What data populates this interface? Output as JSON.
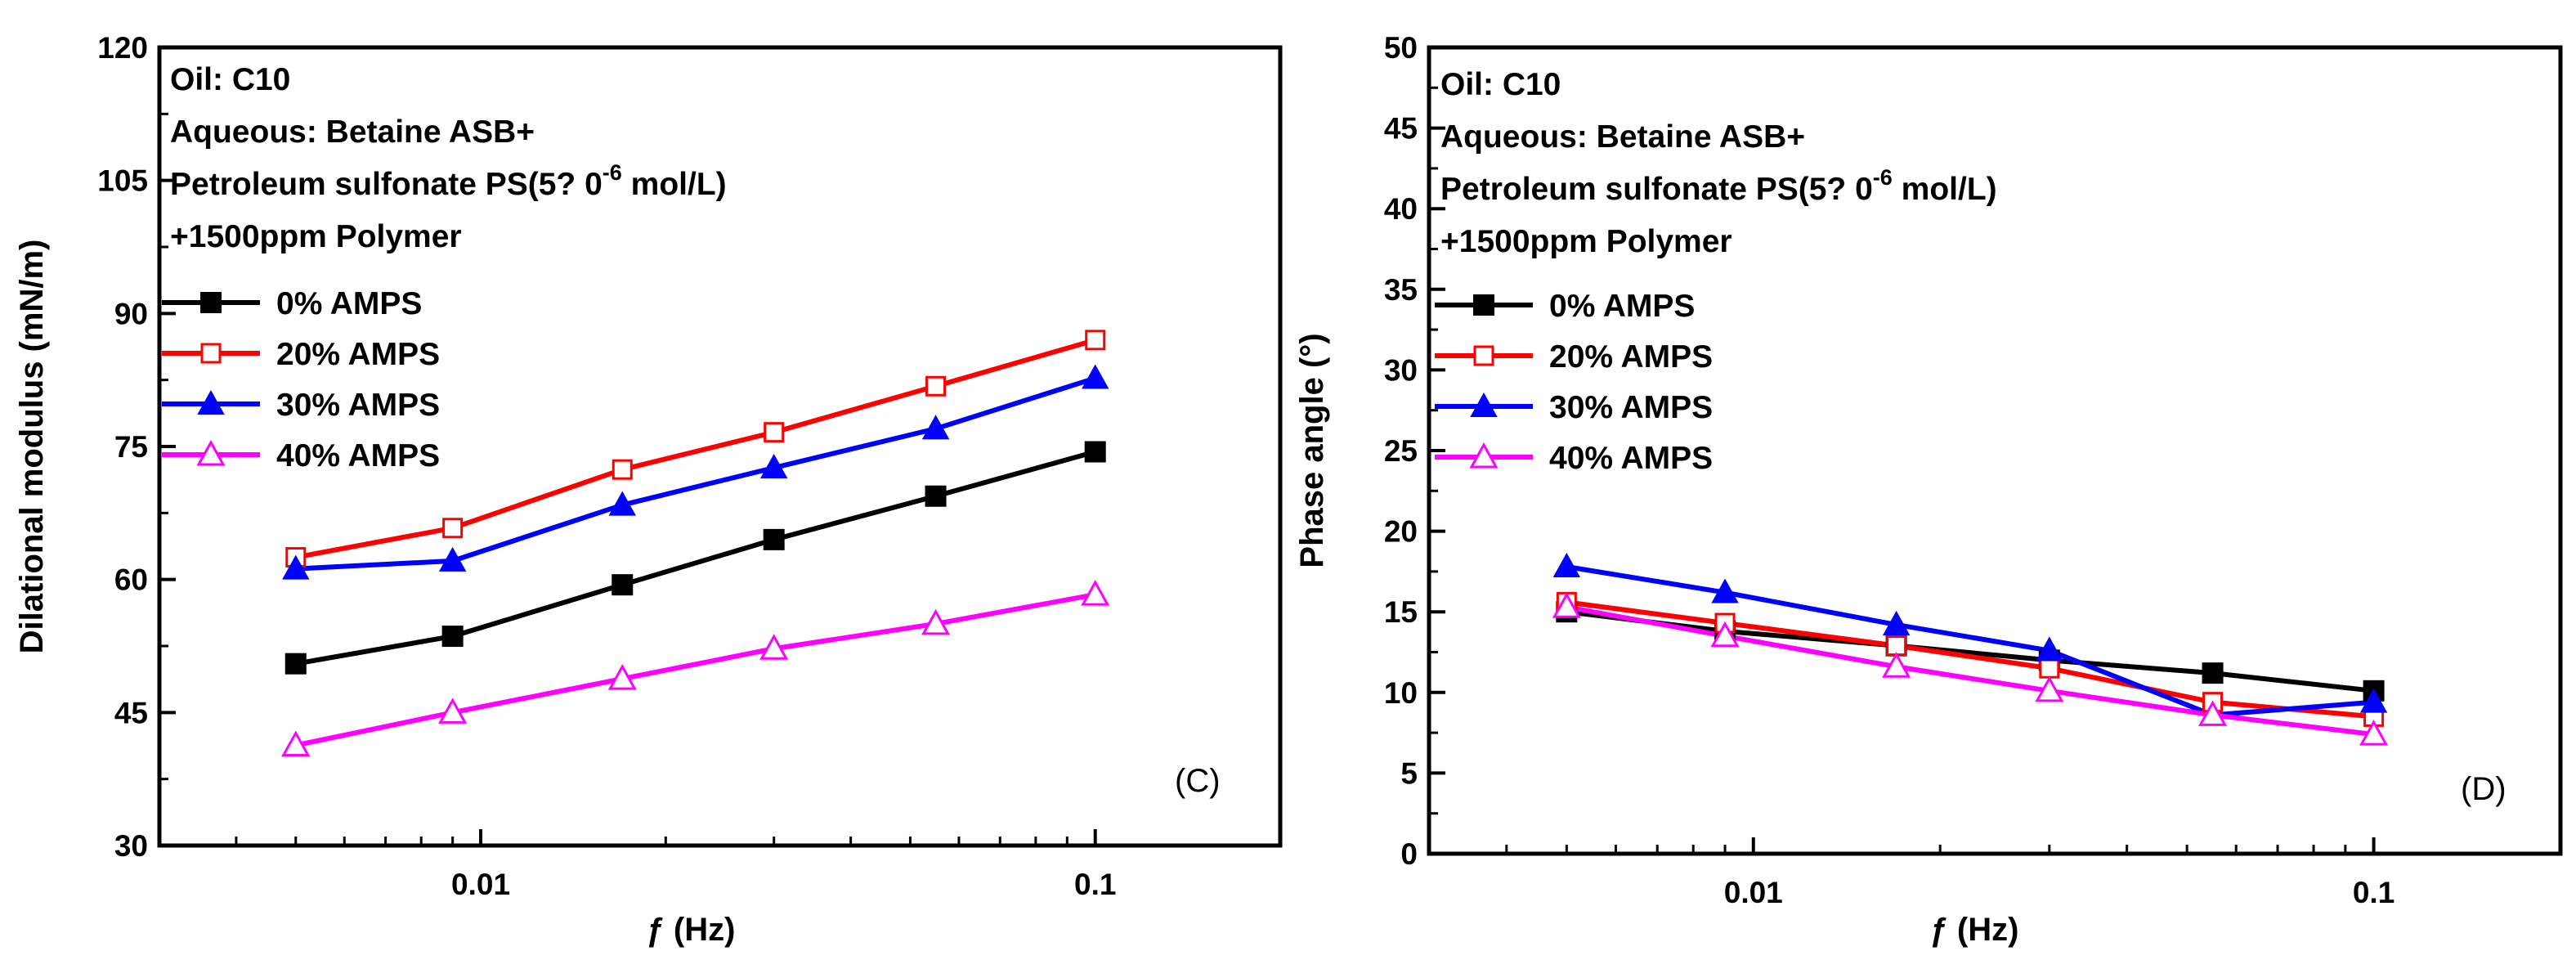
{
  "chart_data": [
    {
      "type": "line",
      "panel": "C",
      "panel_tag": "(C)",
      "xscale": "log",
      "xlim": [
        0.003,
        0.2
      ],
      "ylim": [
        30,
        120
      ],
      "xlabel": "ƒ (Hz)",
      "ylabel": "Dilational modulus (mN/m)",
      "yticks": [
        "30",
        "45",
        "60",
        "75",
        "90",
        "105",
        "120"
      ],
      "yticks_values": [
        30,
        45,
        60,
        75,
        90,
        105,
        120
      ],
      "xticks": [
        "0.01",
        "0.1"
      ],
      "xticks_values": [
        0.01,
        0.1
      ],
      "annotations": [
        "Oil:   C10",
        "Aqueous: Betaine ASB+",
        "Petroleum sulfonate PS(5?  0",
        "-6",
        " mol/L)",
        "+1500ppm Polymer"
      ],
      "x": [
        0.005,
        0.009,
        0.017,
        0.03,
        0.055,
        0.1
      ],
      "series": [
        {
          "name": "  0% AMPS",
          "color": "#000000",
          "marker": "square-filled",
          "values": [
            50.5,
            53.6,
            59.4,
            64.5,
            69.4,
            74.4
          ]
        },
        {
          "name": "20% AMPS",
          "color": "#ff0000",
          "marker": "square-open",
          "values": [
            62.5,
            65.8,
            72.4,
            76.6,
            81.8,
            87.0
          ]
        },
        {
          "name": "30% AMPS",
          "color": "#0000ff",
          "marker": "triangle-filled",
          "values": [
            61.2,
            62.1,
            68.4,
            72.6,
            77.0,
            82.7
          ]
        },
        {
          "name": "40% AMPS",
          "color": "#ff00ff",
          "marker": "triangle-open",
          "values": [
            41.3,
            45.0,
            48.8,
            52.2,
            55.0,
            58.3
          ]
        }
      ]
    },
    {
      "type": "line",
      "panel": "D",
      "panel_tag": "(D)",
      "xscale": "log",
      "xlim": [
        0.003,
        0.2
      ],
      "ylim": [
        0,
        50
      ],
      "xlabel": "ƒ (Hz)",
      "ylabel": "Phase angle (°)",
      "yticks": [
        "0",
        "5",
        "10",
        "15",
        "20",
        "25",
        "30",
        "35",
        "40",
        "45",
        "50"
      ],
      "yticks_values": [
        0,
        5,
        10,
        15,
        20,
        25,
        30,
        35,
        40,
        45,
        50
      ],
      "xticks": [
        "0.01",
        "0.1"
      ],
      "xticks_values": [
        0.01,
        0.1
      ],
      "annotations": [
        "Oil:   C10",
        "Aqueous: Betaine ASB+",
        "Petroleum sulfonate PS(5?  0",
        "-6",
        " mol/L)",
        "+1500ppm Polymer"
      ],
      "x": [
        0.005,
        0.009,
        0.017,
        0.03,
        0.055,
        0.1
      ],
      "series": [
        {
          "name": "  0% AMPS",
          "color": "#000000",
          "marker": "square-filled",
          "values": [
            15.0,
            13.8,
            12.9,
            12.0,
            11.2,
            10.1
          ]
        },
        {
          "name": "20% AMPS",
          "color": "#ff0000",
          "marker": "square-open",
          "values": [
            15.6,
            14.3,
            12.9,
            11.5,
            9.4,
            8.5
          ]
        },
        {
          "name": "30% AMPS",
          "color": "#0000ff",
          "marker": "triangle-filled",
          "values": [
            17.8,
            16.2,
            14.2,
            12.6,
            8.6,
            9.4
          ]
        },
        {
          "name": "40% AMPS",
          "color": "#ff00ff",
          "marker": "triangle-open",
          "values": [
            15.3,
            13.5,
            11.6,
            10.1,
            8.6,
            7.4
          ]
        }
      ]
    }
  ]
}
